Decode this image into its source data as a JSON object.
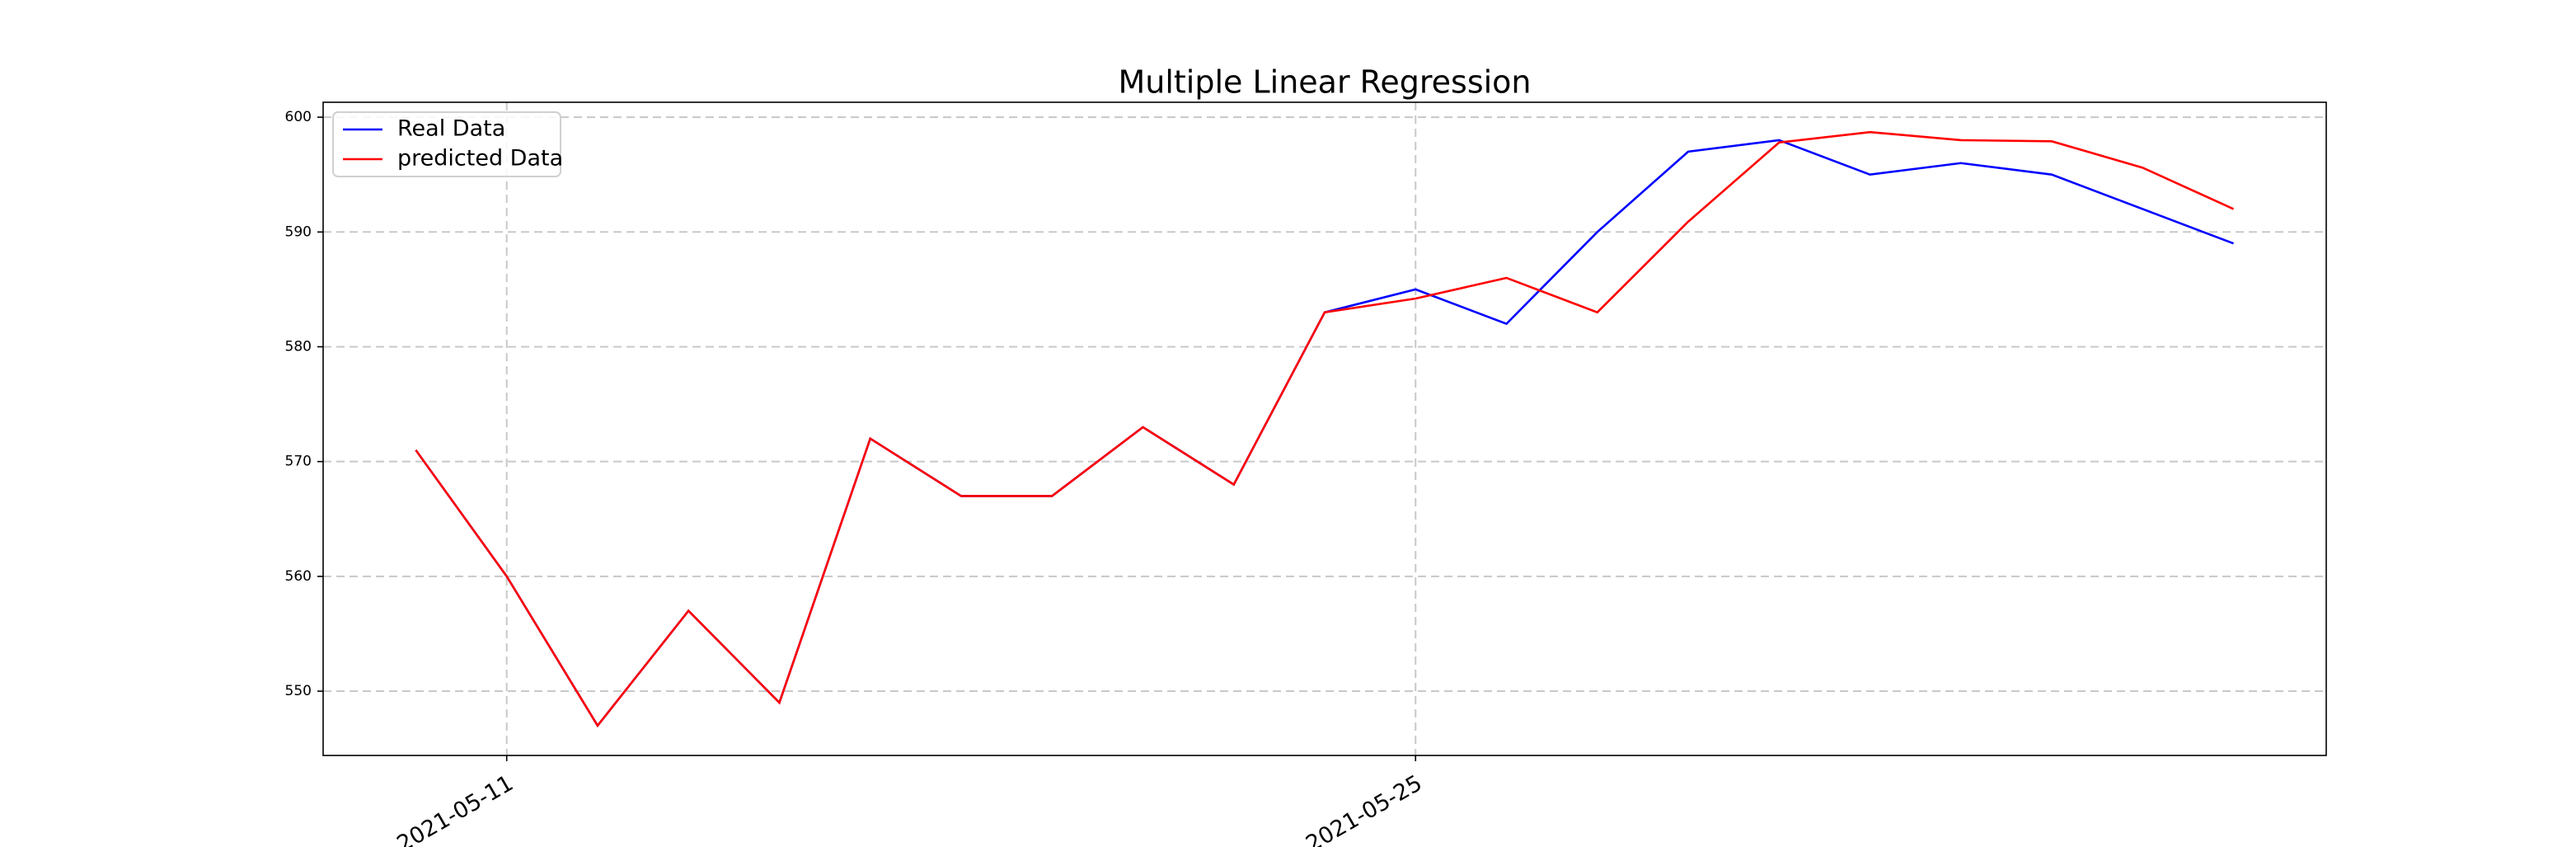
{
  "chart_data": {
    "type": "line",
    "title": "Multiple Linear Regression",
    "categories": [
      null,
      "2021-05-11",
      null,
      null,
      null,
      null,
      null,
      null,
      null,
      null,
      null,
      "2021-05-25",
      null,
      null,
      null,
      null,
      null,
      null,
      null,
      null,
      null
    ],
    "series": [
      {
        "name": "Real Data",
        "color": "#0000ff",
        "values": [
          571,
          560,
          547,
          557,
          549,
          572,
          567,
          567,
          573,
          568,
          583,
          585,
          582,
          590,
          597,
          598,
          595,
          596,
          595,
          592,
          589
        ]
      },
      {
        "name": "predicted Data",
        "color": "#ff0000",
        "values": [
          571,
          560,
          547,
          557,
          549,
          572,
          567,
          567,
          573,
          568,
          583,
          584.2,
          586,
          583,
          590.9,
          597.8,
          598.7,
          598,
          597.9,
          595.6,
          592
        ]
      }
    ],
    "xlim": [
      -1.02,
      21.02
    ],
    "ylim": [
      544.4,
      601.3
    ],
    "yticks": [
      550,
      560,
      570,
      580,
      590,
      600
    ],
    "grid": true,
    "legend": "upper left"
  }
}
